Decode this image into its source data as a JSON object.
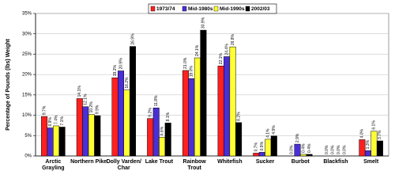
{
  "chart_data": {
    "type": "bar",
    "y_label": "Percentage of Pounds (lbs) Weight",
    "categories": [
      "Arctic Grayling",
      "Northern Pike",
      "Dolly Varden/ Char",
      "Lake Trout",
      "Rainbow Trout",
      "Whitefish",
      "Sucker",
      "Burbot",
      "Blackfish",
      "Smelt"
    ],
    "series": [
      {
        "name": "1973/74",
        "color": "#ff2020",
        "values": [
          9.7,
          14.1,
          19.2,
          9.2,
          21.0,
          22.1,
          0.7,
          0.0,
          0.0,
          4.0
        ],
        "value_labels": [
          "9.7%",
          "14.1%",
          "19.2%",
          "9.2%",
          "21.0%",
          "22.1%",
          "0.7%",
          "0.0%",
          "0.0%",
          "4.0%"
        ]
      },
      {
        "name": "Mid-1980s",
        "color": "#4b2fd6",
        "values": [
          6.9,
          12.1,
          20.9,
          11.8,
          19.0,
          24.4,
          0.9,
          2.9,
          0.0,
          1.3
        ],
        "value_labels": [
          "6.9%",
          "12.1%",
          "20.9%",
          "11.8%",
          "19.0%",
          "24.4%",
          "0.9%",
          "2.9%",
          "0.0%",
          "1.3%"
        ]
      },
      {
        "name": "Mid-1990s",
        "color": "#ffff33",
        "values": [
          7.4,
          10.2,
          16.2,
          4.6,
          24.1,
          26.8,
          4.1,
          0.4,
          0.0,
          6.1
        ],
        "value_labels": [
          "7.4%",
          "10.2%",
          "16.2%",
          "4.6%",
          "24.1%",
          "26.8%",
          "4.1%",
          "0.4%",
          "0.0%",
          "6.1%"
        ]
      },
      {
        "name": "2002/03",
        "color": "#000000",
        "values": [
          7.1,
          9.9,
          26.9,
          8.1,
          30.9,
          8.2,
          4.9,
          0.4,
          0.0,
          3.7
        ],
        "value_labels": [
          "7.1%",
          "9.9%",
          "26.9%",
          "8.1%",
          "30.9%",
          "8.2%",
          "4.9%",
          "0.4%",
          "0.0%",
          "3.7%"
        ]
      }
    ],
    "ylim": [
      0,
      35
    ],
    "yticks": [
      {
        "value": 0,
        "label": "0%"
      },
      {
        "value": 5,
        "label": "5%"
      },
      {
        "value": 10,
        "label": "10%"
      },
      {
        "value": 15,
        "label": "15%"
      },
      {
        "value": 20,
        "label": "20%"
      },
      {
        "value": 25,
        "label": "25%"
      },
      {
        "value": 30,
        "label": "30%"
      },
      {
        "value": 35,
        "label": "35%"
      }
    ],
    "grid": true,
    "legend": "top"
  }
}
